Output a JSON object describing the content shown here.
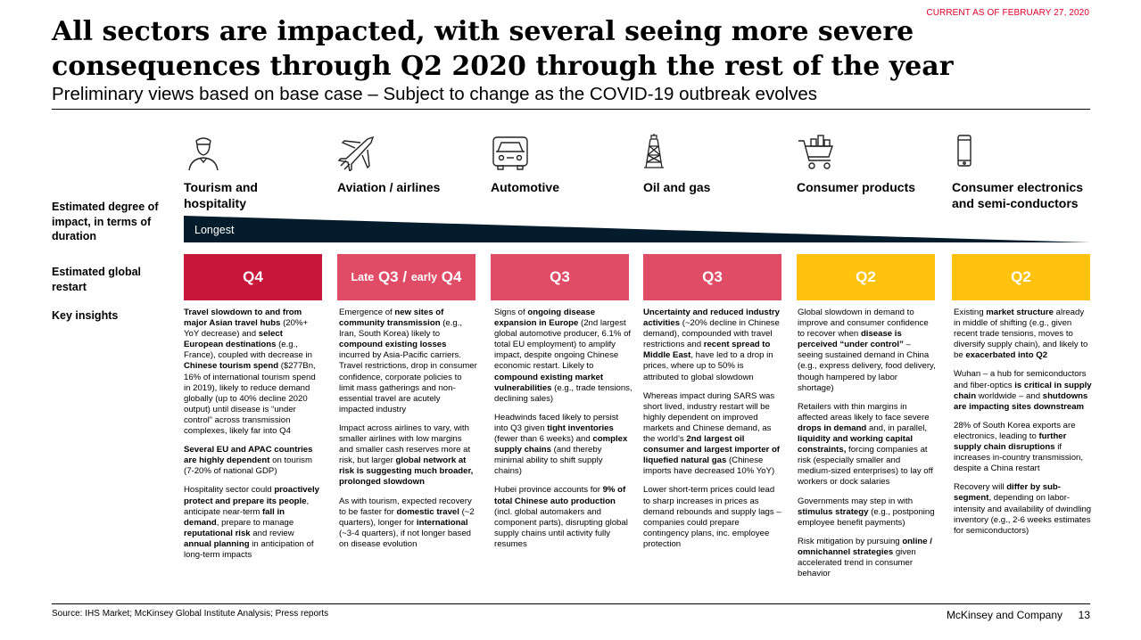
{
  "header": {
    "as_of": "CURRENT AS OF FEBRUARY 27, 2020",
    "title": "All sectors are impacted, with several seeing more severe consequences through Q2 2020 through the rest of the year",
    "subtitle": "Preliminary views based on base case – Subject to change as the COVID-19 outbreak evolves"
  },
  "row_labels": {
    "impact": "Estimated degree of impact, in terms of duration",
    "restart": "Estimated global restart",
    "insights": "Key insights"
  },
  "duration_bar": {
    "label": "Longest",
    "color": "#051c2c"
  },
  "sectors": [
    {
      "name": "Tourism and hospitality",
      "icon": "hotel-staff-icon",
      "restart_prefix": "",
      "restart": "Q4",
      "color": "#c8183a"
    },
    {
      "name": "Aviation / airlines",
      "icon": "airplane-icon",
      "restart_prefix": "Late",
      "restart": "Q3",
      "restart_mid": "/",
      "restart_prefix2": "early",
      "restart2": "Q4",
      "color": "#e04b65"
    },
    {
      "name": "Automotive",
      "icon": "car-icon",
      "restart_prefix": "",
      "restart": "Q3",
      "color": "#e04b65"
    },
    {
      "name": "Oil and gas",
      "icon": "oil-rig-icon",
      "restart_prefix": "",
      "restart": "Q3",
      "color": "#e04b65"
    },
    {
      "name": "Consumer products",
      "icon": "shopping-cart-icon",
      "restart_prefix": "",
      "restart": "Q2",
      "color": "#ffc20e"
    },
    {
      "name": "Consumer electronics and semi-conductors",
      "icon": "smartphone-icon",
      "restart_prefix": "",
      "restart": "Q2",
      "color": "#ffc20e"
    }
  ],
  "footer": {
    "source": "Source: IHS Market; McKinsey Global Institute Analysis; Press reports",
    "brand": "McKinsey and Company",
    "page": "13"
  }
}
